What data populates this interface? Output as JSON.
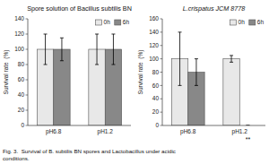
{
  "chart_data": [
    {
      "type": "bar",
      "title": "Spore solution of Bacillus subtilis BN",
      "categories": [
        "pH6.8",
        "pH1.2"
      ],
      "series": [
        {
          "name": "0h",
          "color": "#e8e8e8",
          "values": [
            100,
            100
          ],
          "errors": [
            20,
            20
          ]
        },
        {
          "name": "6h",
          "color": "#888888",
          "values": [
            100,
            100
          ],
          "errors": [
            15,
            20
          ]
        }
      ],
      "ylabel": "Survival rate  (%)",
      "ylim": [
        0,
        140
      ],
      "yticks": [
        0,
        20,
        40,
        60,
        80,
        100,
        120,
        140
      ],
      "legend": "upper right",
      "grid": false
    },
    {
      "type": "bar",
      "title": "L.crispatus JCM 8778",
      "categories": [
        "pH6.8",
        "pH1.2"
      ],
      "series": [
        {
          "name": "0h",
          "color": "#e8e8e8",
          "values": [
            100,
            100
          ],
          "errors": [
            40,
            5
          ]
        },
        {
          "name": "6h",
          "color": "#888888",
          "values": [
            80,
            0
          ],
          "errors": [
            20,
            0
          ]
        }
      ],
      "ylabel": "Survival rate  (%)",
      "ylim": [
        0,
        160
      ],
      "yticks": [
        0,
        20,
        40,
        60,
        80,
        100,
        120,
        140,
        160
      ],
      "legend": "upper right",
      "grid": false,
      "annotations": [
        {
          "text": "**",
          "x": "pH1.2",
          "series": "6h"
        }
      ]
    }
  ],
  "caption": "Fig. 3.  Survival of B. subtilis BN spores and Lactobacillus under acidic\nconditions."
}
